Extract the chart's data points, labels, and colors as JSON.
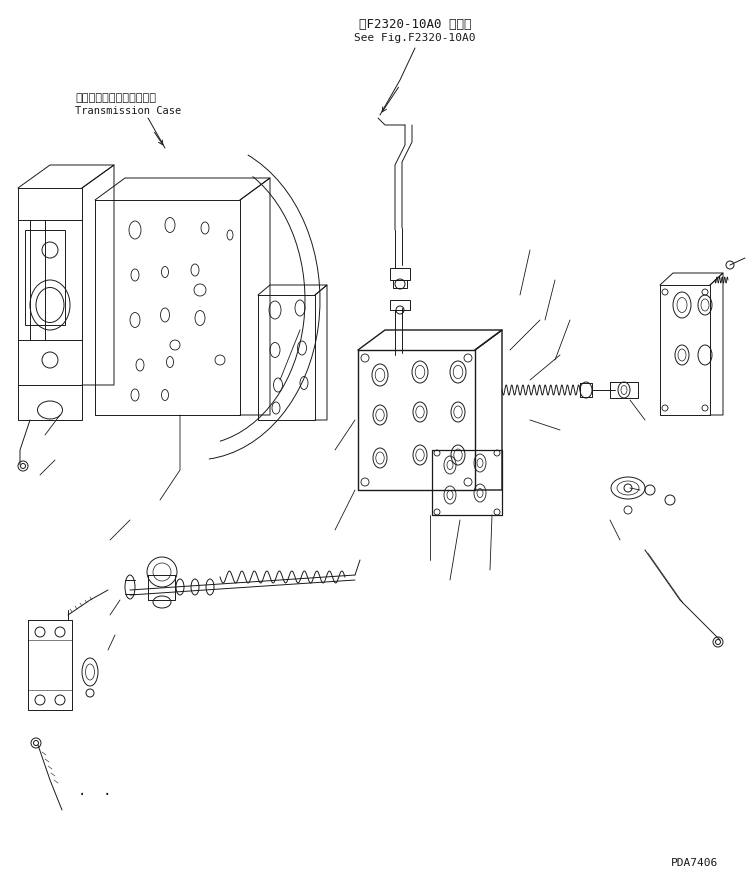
{
  "title_jp": "第F2320-10A0 図参照",
  "title_en": "See Fig.F2320-10A0",
  "label_jp": "トランスミッションケース",
  "label_en": "Transmission Case",
  "part_number": "PDA7406",
  "bg_color": "#ffffff",
  "line_color": "#1a1a1a",
  "figsize": [
    7.56,
    8.76
  ],
  "dpi": 100
}
